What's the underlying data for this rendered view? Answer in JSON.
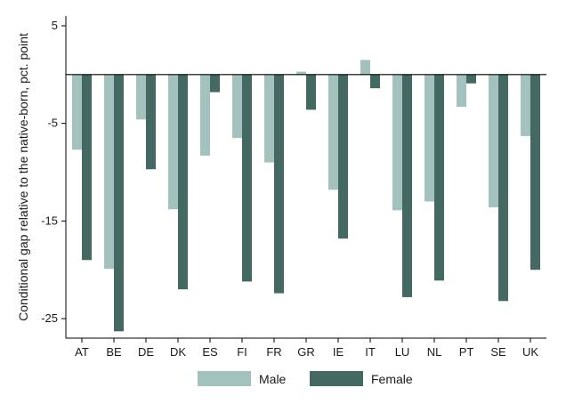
{
  "chart_data": {
    "type": "bar",
    "title": "",
    "xlabel": "",
    "ylabel": "Conditional gap relative to the native-born, pct. point",
    "ylim": [
      -27,
      6
    ],
    "yticks": [
      5,
      -5,
      -15,
      -25
    ],
    "ytick_labels": [
      "5",
      "-5",
      "-15",
      "-25"
    ],
    "grid": false,
    "legend_position": "bottom",
    "categories": [
      "AT",
      "BE",
      "DE",
      "DK",
      "ES",
      "FI",
      "FR",
      "GR",
      "IE",
      "IT",
      "LU",
      "NL",
      "PT",
      "SE",
      "UK"
    ],
    "series": [
      {
        "name": "Male",
        "color": "#a4c2bd",
        "values": [
          -7.7,
          -19.9,
          -4.6,
          -13.8,
          -8.3,
          -6.5,
          -9.0,
          0.3,
          -11.8,
          1.5,
          -13.9,
          -13.0,
          -3.3,
          -13.6,
          -6.3
        ]
      },
      {
        "name": "Female",
        "color": "#446963",
        "values": [
          -19.0,
          -26.3,
          -9.7,
          -22.0,
          -1.8,
          -21.2,
          -22.4,
          -3.6,
          -16.8,
          -1.4,
          -22.8,
          -21.1,
          -0.9,
          -23.2,
          -20.0
        ]
      }
    ]
  }
}
